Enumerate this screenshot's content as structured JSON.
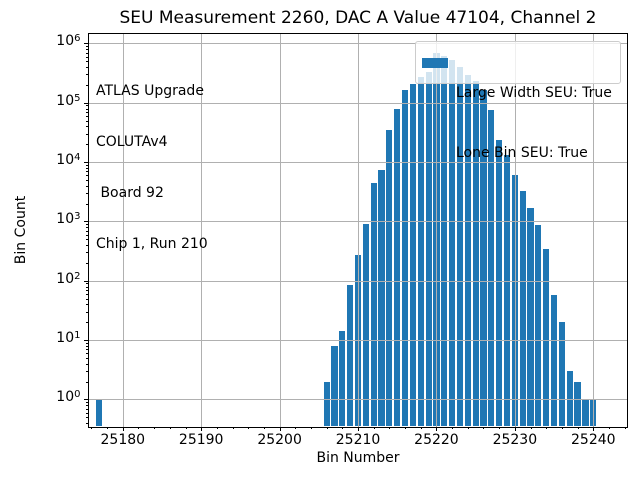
{
  "figure_title": "SEU Measurement 2260, DAC A Value 47104, Channel 2",
  "annotation": {
    "lines": [
      "ATLAS Upgrade",
      "COLUTAv4",
      " Board 92",
      "Chip 1, Run 210"
    ]
  },
  "legend": {
    "items": [
      "Large Width SEU: True",
      "Lone Bin SEU: True"
    ],
    "swatch_color": "#1f77b4"
  },
  "chart_data": {
    "type": "bar",
    "title": "SEU Measurement 2260, DAC A Value 47104, Channel 2",
    "xlabel": "Bin Number",
    "ylabel": "Bin Count",
    "yscale": "log",
    "grid": true,
    "grid_color": "#b0b0b0",
    "bar_color": "#1f77b4",
    "legend_position": "upper right",
    "xlim": [
      25175.5,
      25244.3
    ],
    "ylim": [
      0.35,
      1500000
    ],
    "xticks": [
      25180,
      25190,
      25200,
      25210,
      25220,
      25230,
      25240
    ],
    "ytick_exponents": [
      0,
      1,
      2,
      3,
      4,
      5,
      6
    ],
    "x": [
      25177,
      25206,
      25207,
      25208,
      25209,
      25210,
      25211,
      25212,
      25213,
      25214,
      25215,
      25216,
      25217,
      25218,
      25219,
      25220,
      25221,
      25222,
      25223,
      25224,
      25225,
      25226,
      25227,
      25228,
      25229,
      25230,
      25231,
      25232,
      25233,
      25234,
      25235,
      25236,
      25237,
      25238,
      25239,
      25240
    ],
    "values": [
      1,
      2,
      8,
      14,
      85,
      270,
      900,
      4400,
      7500,
      35000,
      80000,
      165000,
      205000,
      275000,
      330000,
      700000,
      620000,
      520000,
      400000,
      290000,
      235000,
      165000,
      75000,
      24000,
      13000,
      6000,
      3200,
      1700,
      870,
      340,
      58,
      20,
      3,
      2,
      1,
      1
    ]
  }
}
